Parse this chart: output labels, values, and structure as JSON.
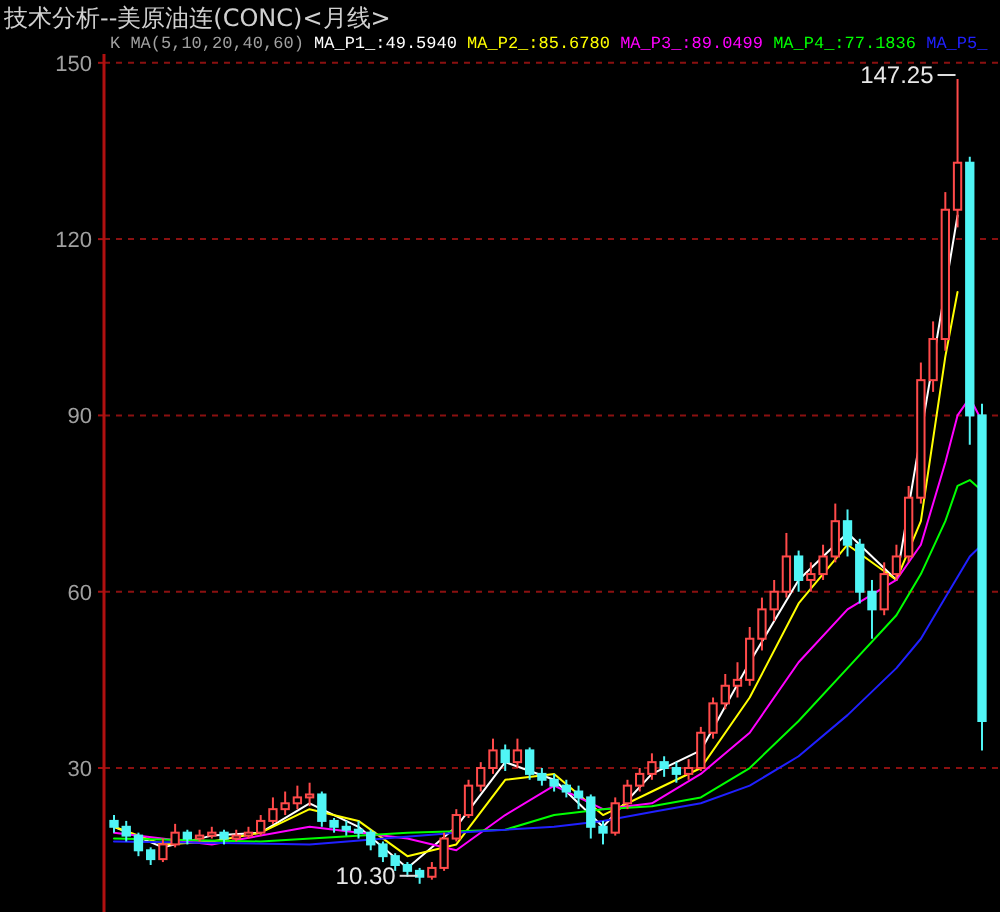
{
  "chart_data": {
    "type": "candlestick",
    "title": "技术分析--美原油连(CONC)<月线>",
    "subtitle": "K  MA(5,10,20,40,60)",
    "categories": [
      null,
      null,
      null,
      null,
      null,
      null,
      null,
      null,
      null,
      null,
      null,
      null,
      null,
      null,
      null,
      null,
      null,
      null,
      null,
      null,
      null,
      null,
      null,
      null,
      null,
      null,
      null,
      null,
      null,
      null,
      null,
      null,
      null,
      null,
      null,
      null,
      null,
      null,
      null,
      null,
      null,
      null,
      null,
      null,
      null,
      null,
      null,
      null,
      null,
      null,
      null,
      null,
      null,
      null,
      null,
      null,
      null,
      null,
      null,
      null,
      null,
      null,
      null,
      null,
      null,
      null,
      null,
      null,
      null,
      null,
      null,
      null
    ],
    "ohlc": [
      [
        21,
        22,
        19,
        20
      ],
      [
        20,
        21,
        17.5,
        18.5
      ],
      [
        18.5,
        19,
        15,
        16
      ],
      [
        16,
        16.5,
        13.5,
        14.5
      ],
      [
        14.5,
        18,
        14,
        17
      ],
      [
        17,
        20.5,
        16.5,
        19
      ],
      [
        19,
        19.5,
        17,
        18
      ],
      [
        18,
        19.5,
        17.5,
        18.5
      ],
      [
        18.5,
        20,
        18,
        19
      ],
      [
        19,
        19.5,
        17,
        18
      ],
      [
        18,
        19.5,
        17.5,
        18.5
      ],
      [
        18.5,
        20,
        18,
        19
      ],
      [
        19,
        22,
        18.5,
        21
      ],
      [
        21,
        25,
        20.5,
        23
      ],
      [
        23,
        26,
        22,
        24
      ],
      [
        24,
        27,
        23,
        25
      ],
      [
        25,
        27.5,
        23.5,
        25.5
      ],
      [
        25.5,
        26,
        20,
        21
      ],
      [
        21,
        21.5,
        19,
        20
      ],
      [
        20,
        21,
        18.5,
        19.5
      ],
      [
        19.5,
        21,
        18,
        19
      ],
      [
        19,
        19.5,
        16,
        17
      ],
      [
        17,
        17.5,
        14,
        15
      ],
      [
        15,
        15.5,
        12.5,
        13.5
      ],
      [
        13.5,
        14,
        11.5,
        12.5
      ],
      [
        12.5,
        13,
        10.3,
        11.5
      ],
      [
        11.5,
        14,
        11,
        13
      ],
      [
        13,
        19,
        12.5,
        18
      ],
      [
        18,
        23,
        17.5,
        22
      ],
      [
        22,
        28,
        21.5,
        27
      ],
      [
        27,
        31,
        26,
        30
      ],
      [
        30,
        35,
        29,
        33
      ],
      [
        33,
        34,
        29.5,
        31
      ],
      [
        31,
        35,
        30,
        33
      ],
      [
        33,
        33.5,
        28,
        29
      ],
      [
        29,
        30,
        27,
        28
      ],
      [
        28,
        29,
        26,
        27
      ],
      [
        27,
        28,
        25,
        26
      ],
      [
        26,
        27,
        23,
        25
      ],
      [
        25,
        25.5,
        18,
        20
      ],
      [
        20,
        21,
        17,
        19
      ],
      [
        19,
        25,
        18.5,
        24
      ],
      [
        24,
        28,
        23,
        27
      ],
      [
        27,
        30,
        26,
        29
      ],
      [
        29,
        32.5,
        28,
        31
      ],
      [
        31,
        32,
        28.5,
        30
      ],
      [
        30,
        31,
        27.5,
        29
      ],
      [
        29,
        31.5,
        28,
        30
      ],
      [
        30,
        37,
        29.5,
        36
      ],
      [
        36,
        42,
        35,
        41
      ],
      [
        41,
        46,
        40,
        44
      ],
      [
        44,
        48,
        42,
        45
      ],
      [
        45,
        54,
        44,
        52
      ],
      [
        52,
        59,
        50,
        57
      ],
      [
        57,
        62,
        55,
        60
      ],
      [
        60,
        70,
        59,
        66
      ],
      [
        66,
        67,
        60,
        62
      ],
      [
        62,
        65,
        60,
        63
      ],
      [
        63,
        68,
        62,
        66
      ],
      [
        66,
        75,
        65,
        72
      ],
      [
        72,
        74,
        66,
        68
      ],
      [
        68,
        69,
        58,
        60
      ],
      [
        60,
        62,
        52,
        57
      ],
      [
        57,
        65,
        56,
        63
      ],
      [
        63,
        68,
        62,
        66
      ],
      [
        66,
        78,
        65,
        76
      ],
      [
        76,
        99,
        75,
        96
      ],
      [
        96,
        106,
        94,
        103
      ],
      [
        103,
        128,
        101,
        125
      ],
      [
        125,
        147.25,
        122,
        133
      ],
      [
        133,
        134,
        85,
        90
      ],
      [
        90,
        92,
        33,
        38
      ]
    ],
    "series": [
      {
        "name": "MA_P1_:49.5940",
        "type": "line",
        "color": "#ffffff",
        "values": [
          20,
          null,
          null,
          null,
          16.5,
          null,
          null,
          null,
          18.5,
          null,
          null,
          null,
          19,
          null,
          null,
          null,
          24,
          null,
          null,
          null,
          20,
          null,
          null,
          null,
          13,
          null,
          null,
          null,
          20,
          null,
          null,
          null,
          31,
          null,
          null,
          null,
          28,
          null,
          null,
          null,
          20,
          null,
          null,
          null,
          29,
          null,
          null,
          null,
          33,
          null,
          null,
          null,
          48,
          null,
          null,
          null,
          62,
          null,
          null,
          null,
          70,
          null,
          null,
          null,
          62,
          null,
          null,
          null,
          null,
          124,
          null,
          null
        ]
      },
      {
        "name": "MA_P2_:85.6780",
        "type": "line",
        "color": "#ffff00",
        "values": [
          20,
          null,
          null,
          null,
          17,
          null,
          null,
          null,
          17.5,
          null,
          null,
          null,
          19,
          null,
          null,
          null,
          23,
          null,
          null,
          null,
          21,
          null,
          null,
          null,
          15,
          null,
          null,
          null,
          17,
          null,
          null,
          null,
          28,
          null,
          null,
          null,
          29,
          null,
          null,
          null,
          22,
          null,
          null,
          null,
          26,
          null,
          null,
          null,
          30,
          null,
          null,
          null,
          42,
          null,
          null,
          null,
          58,
          null,
          null,
          null,
          68,
          null,
          null,
          null,
          62,
          null,
          72,
          null,
          100,
          111,
          null,
          null
        ]
      },
      {
        "name": "MA_P3_:89.0499",
        "type": "line",
        "color": "#ff00ff",
        "values": [
          19,
          null,
          null,
          null,
          null,
          null,
          null,
          null,
          17,
          null,
          null,
          null,
          null,
          null,
          null,
          null,
          20,
          null,
          null,
          null,
          null,
          null,
          null,
          null,
          18,
          null,
          null,
          null,
          16,
          null,
          null,
          null,
          22,
          null,
          null,
          null,
          27,
          null,
          null,
          null,
          23,
          null,
          null,
          null,
          24,
          null,
          null,
          null,
          29,
          null,
          null,
          null,
          36,
          null,
          null,
          null,
          48,
          null,
          null,
          null,
          57,
          null,
          null,
          null,
          62,
          null,
          68,
          null,
          82,
          90,
          93,
          89
        ]
      },
      {
        "name": "MA_P4_:77.1836",
        "type": "line",
        "color": "#00ff00",
        "values": [
          18,
          null,
          null,
          null,
          null,
          null,
          null,
          null,
          null,
          null,
          null,
          null,
          17.5,
          null,
          null,
          null,
          null,
          null,
          null,
          null,
          null,
          null,
          null,
          null,
          19,
          null,
          null,
          null,
          null,
          null,
          null,
          null,
          19.5,
          null,
          null,
          null,
          22,
          null,
          null,
          null,
          23,
          null,
          null,
          null,
          23.5,
          null,
          null,
          null,
          25,
          null,
          null,
          null,
          30,
          null,
          null,
          null,
          38,
          null,
          null,
          null,
          47,
          null,
          null,
          null,
          56,
          null,
          63,
          null,
          72,
          78,
          79,
          77.2
        ]
      },
      {
        "name": "MA_P5_",
        "type": "line",
        "color": "#2020ff",
        "values": [
          17.5,
          null,
          null,
          null,
          null,
          null,
          null,
          null,
          null,
          null,
          null,
          null,
          null,
          null,
          null,
          null,
          17,
          null,
          null,
          null,
          null,
          null,
          null,
          null,
          null,
          null,
          null,
          null,
          19,
          null,
          null,
          null,
          null,
          null,
          null,
          null,
          20,
          null,
          null,
          null,
          21,
          null,
          null,
          null,
          22.5,
          null,
          null,
          null,
          24,
          null,
          null,
          null,
          27,
          null,
          null,
          null,
          32,
          null,
          null,
          null,
          39,
          null,
          null,
          null,
          47,
          null,
          52,
          null,
          59,
          null,
          66,
          68
        ]
      }
    ],
    "ylim": [
      5.5,
      151.5
    ],
    "yticks": [
      30,
      60,
      90,
      120,
      150
    ],
    "grid": "y",
    "tick_labels": "y",
    "annotations": [
      "147.25",
      "10.30"
    ]
  }
}
